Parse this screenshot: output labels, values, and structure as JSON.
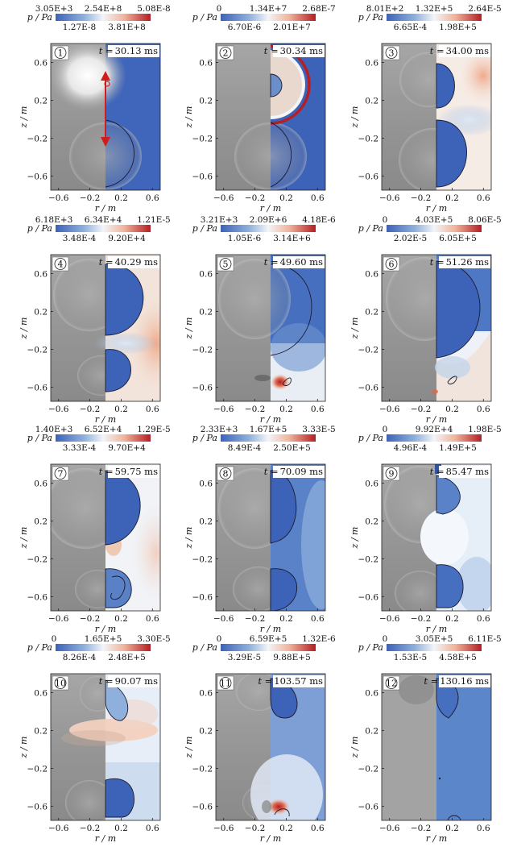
{
  "figure": {
    "panels": [
      {
        "index": "1",
        "time": "30.13 ms",
        "colorbar_top": [
          "3.05E+3",
          "2.54E+8",
          "5.08E-8"
        ],
        "colorbar_bottom": [
          "1.27E-8",
          "3.81E+8"
        ]
      },
      {
        "index": "2",
        "time": "30.34 ms",
        "colorbar_top": [
          "0",
          "1.34E+7",
          "2.68E-7"
        ],
        "colorbar_bottom": [
          "6.70E-6",
          "2.01E+7"
        ]
      },
      {
        "index": "3",
        "time": "34.00 ms",
        "colorbar_top": [
          "8.01E+2",
          "1.32E+5",
          "2.64E-5"
        ],
        "colorbar_bottom": [
          "6.65E-4",
          "1.98E+5"
        ]
      },
      {
        "index": "4",
        "time": "40.29 ms",
        "colorbar_top": [
          "6.18E+3",
          "6.34E+4",
          "1.21E-5"
        ],
        "colorbar_bottom": [
          "3.48E-4",
          "9.20E+4"
        ]
      },
      {
        "index": "5",
        "time": "49.60 ms",
        "colorbar_top": [
          "3.21E+3",
          "2.09E+6",
          "4.18E-6"
        ],
        "colorbar_bottom": [
          "1.05E-6",
          "3.14E+6"
        ]
      },
      {
        "index": "6",
        "time": "51.26 ms",
        "colorbar_top": [
          "0",
          "4.03E+5",
          "8.06E-5"
        ],
        "colorbar_bottom": [
          "2.02E-5",
          "6.05E+5"
        ]
      },
      {
        "index": "7",
        "time": "59.75 ms",
        "colorbar_top": [
          "1.40E+3",
          "6.52E+4",
          "1.29E-5"
        ],
        "colorbar_bottom": [
          "3.33E-4",
          "9.70E+4"
        ]
      },
      {
        "index": "8",
        "time": "70.09 ms",
        "colorbar_top": [
          "2.33E+3",
          "1.67E+5",
          "3.33E-5"
        ],
        "colorbar_bottom": [
          "8.49E-4",
          "2.50E+5"
        ]
      },
      {
        "index": "9",
        "time": "85.47 ms",
        "colorbar_top": [
          "0",
          "9.92E+4",
          "1.98E-5"
        ],
        "colorbar_bottom": [
          "4.96E-4",
          "1.49E+5"
        ]
      },
      {
        "index": "10",
        "time": "90.07 ms",
        "colorbar_top": [
          "0",
          "1.65E+5",
          "3.30E-5"
        ],
        "colorbar_bottom": [
          "8.26E-4",
          "2.48E+5"
        ]
      },
      {
        "index": "11",
        "time": "103.57 ms",
        "colorbar_top": [
          "0",
          "6.59E+5",
          "1.32E-6"
        ],
        "colorbar_bottom": [
          "3.29E-5",
          "9.88E+5"
        ]
      },
      {
        "index": "12",
        "time": "130.16 ms",
        "colorbar_top": [
          "0",
          "3.05E+5",
          "6.11E-5"
        ],
        "colorbar_bottom": [
          "1.53E-5",
          "4.58E+5"
        ]
      }
    ],
    "colorbar_label": "p / Pa",
    "time_prefix": "t =",
    "x_axis_label": "r / m",
    "y_axis_label": "z / m",
    "x_ticks": [
      "−0.6",
      "−0.2",
      "0.2",
      "0.6"
    ],
    "y_ticks": [
      "0.6",
      "0.2",
      "−0.2",
      "−0.6"
    ],
    "colors": {
      "low": "#3d63b8",
      "mid": "#f3f5f8",
      "high": "#b41e24",
      "photo": "#9b9b9b",
      "arrow": "#d21b1b"
    }
  }
}
